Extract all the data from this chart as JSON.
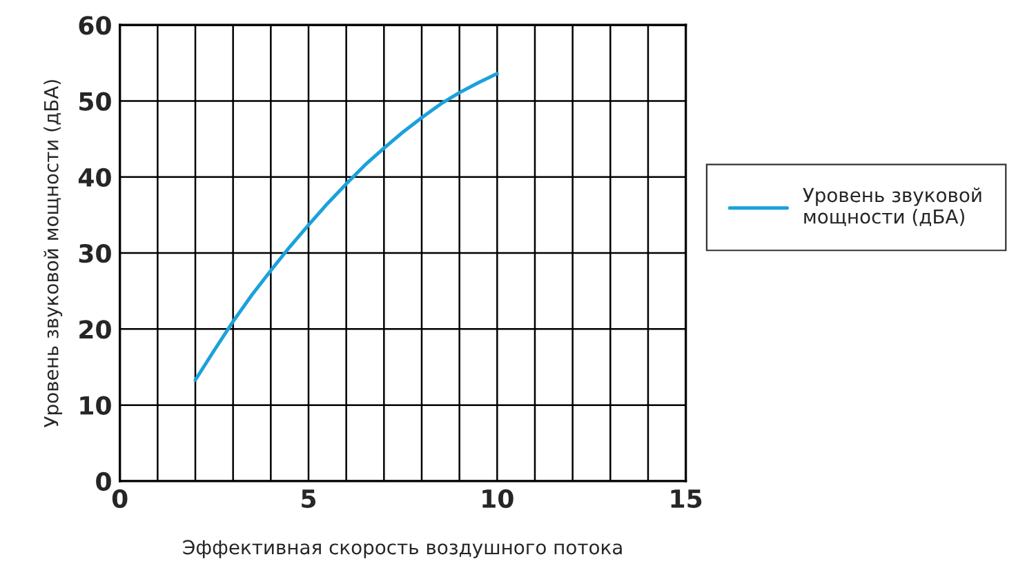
{
  "chart_data": {
    "type": "line",
    "xlabel": "Эффективная скорость воздушного потока",
    "ylabel": "Уровень звуковой мощности (дБА)",
    "series": [
      {
        "name": "Уровень звуковой мощности (дБА)",
        "color": "#1ba1db",
        "x": [
          2,
          2.5,
          3,
          3.5,
          4,
          4.5,
          5,
          5.5,
          6,
          6.5,
          7,
          7.5,
          8,
          8.5,
          9,
          9.5,
          10
        ],
        "values": [
          13.3,
          17.2,
          21,
          24.5,
          27.7,
          30.8,
          33.7,
          36.5,
          39.1,
          41.6,
          43.8,
          45.9,
          47.8,
          49.6,
          51.1,
          52.4,
          53.6
        ]
      }
    ],
    "xlim": [
      0,
      15
    ],
    "xticks": [
      0,
      {
        "value": 1,
        "label": null
      },
      {
        "value": 2,
        "label": null
      },
      {
        "value": 3,
        "label": null
      },
      {
        "value": 4,
        "label": null
      },
      5,
      {
        "value": 6,
        "label": null
      },
      {
        "value": 7,
        "label": null
      },
      {
        "value": 8,
        "label": null
      },
      {
        "value": 9,
        "label": null
      },
      10,
      {
        "value": 11,
        "label": null
      },
      {
        "value": 12,
        "label": null
      },
      {
        "value": 13,
        "label": null
      },
      {
        "value": 14,
        "label": null
      },
      15
    ],
    "ylim": [
      0,
      60
    ],
    "yticks": [
      0,
      10,
      20,
      30,
      40,
      50,
      60
    ],
    "grid": true,
    "legend": "right",
    "marker": "none",
    "line_style": "solid"
  }
}
